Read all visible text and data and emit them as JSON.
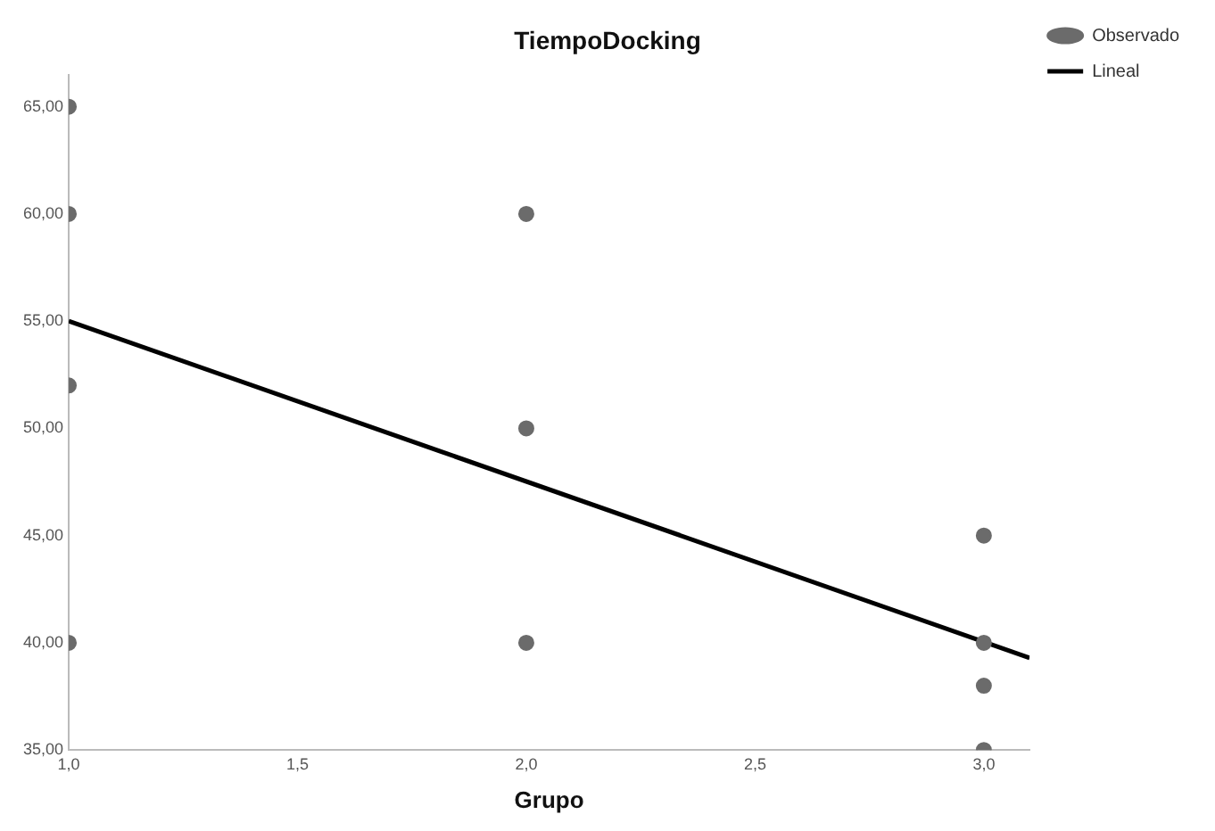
{
  "chart_data": {
    "type": "scatter",
    "title": "TiempoDocking",
    "xlabel": "Grupo",
    "series": [
      {
        "name": "Observado",
        "type": "scatter",
        "marker": "circle",
        "color": "#6b6b6b",
        "x": [
          1,
          1,
          1,
          1,
          2,
          2,
          2,
          3,
          3,
          3,
          3
        ],
        "values": [
          65,
          60,
          52,
          40,
          60,
          50,
          40,
          45,
          40,
          38,
          35
        ]
      },
      {
        "name": "Lineal",
        "type": "line",
        "marker": "none",
        "color": "#000000",
        "x": [
          1,
          3.1
        ],
        "values": [
          55,
          39.3
        ]
      }
    ],
    "xlim": [
      1,
      3.1
    ],
    "xticks": [
      {
        "value": 1,
        "label": "1,0"
      },
      {
        "value": 1.5,
        "label": "1,5"
      },
      {
        "value": 2,
        "label": "2,0"
      },
      {
        "value": 2.5,
        "label": "2,5"
      },
      {
        "value": 3,
        "label": "3,0"
      }
    ],
    "ylim": [
      35,
      66.5
    ],
    "yticks": [
      {
        "value": 35,
        "label": "35,00"
      },
      {
        "value": 40,
        "label": "40,00"
      },
      {
        "value": 45,
        "label": "45,00"
      },
      {
        "value": 50,
        "label": "50,00"
      },
      {
        "value": 55,
        "label": "55,00"
      },
      {
        "value": 60,
        "label": "60,00"
      },
      {
        "value": 65,
        "label": "65,00"
      }
    ],
    "grid": false,
    "legend": "top right"
  }
}
